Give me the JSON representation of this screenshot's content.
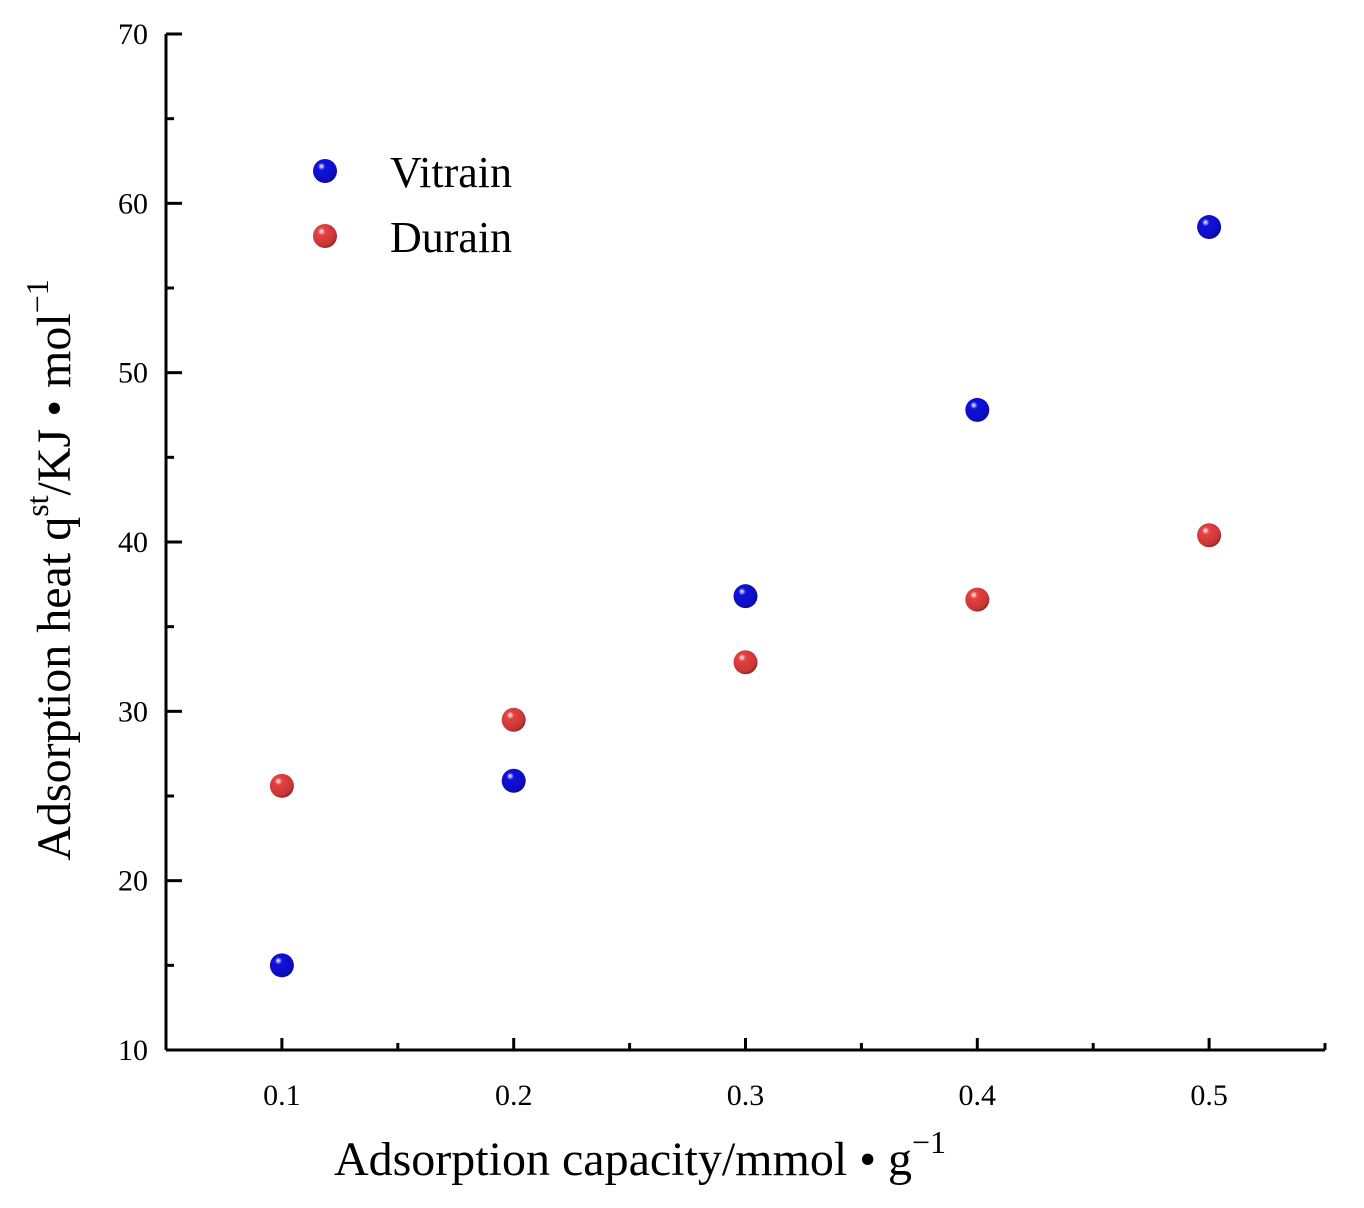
{
  "chart_data": {
    "type": "scatter",
    "title": "",
    "xlabel": "Adsorption capacity/mmol • g",
    "xlabel_sup": "−1",
    "ylabel_prefix": "Adsorption heat q",
    "ylabel_sup1": "st",
    "ylabel_mid": "/KJ • mol",
    "ylabel_sup2": "−1",
    "xlim": [
      0.05,
      0.55
    ],
    "ylim": [
      10,
      70
    ],
    "x_ticks": [
      0.1,
      0.2,
      0.3,
      0.4,
      0.5
    ],
    "x_tick_labels": [
      "0.1",
      "0.2",
      "0.3",
      "0.4",
      "0.5"
    ],
    "x_minor_ticks": [
      0.15,
      0.25,
      0.35,
      0.45,
      0.55
    ],
    "y_ticks": [
      10,
      20,
      30,
      40,
      50,
      60,
      70
    ],
    "y_tick_labels": [
      "10",
      "20",
      "30",
      "40",
      "50",
      "60",
      "70"
    ],
    "y_minor_ticks": [
      15,
      25,
      35,
      45,
      55,
      65
    ],
    "grid": false,
    "legend_position": "top-left",
    "series": [
      {
        "name": "Vitrain",
        "color": "#1010e0",
        "x": [
          0.1,
          0.2,
          0.3,
          0.4,
          0.5
        ],
        "y": [
          15.0,
          25.9,
          36.8,
          47.8,
          58.6
        ]
      },
      {
        "name": "Durain",
        "color": "#e84040",
        "x": [
          0.1,
          0.2,
          0.3,
          0.4,
          0.5
        ],
        "y": [
          25.6,
          29.5,
          32.9,
          36.6,
          40.4
        ]
      }
    ]
  }
}
